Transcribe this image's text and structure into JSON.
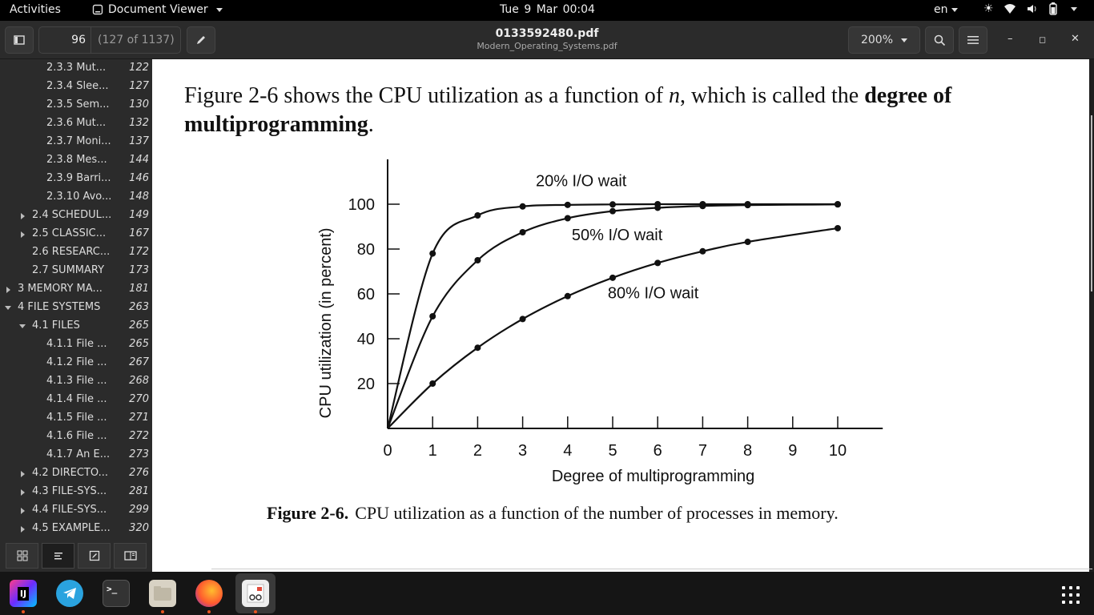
{
  "topbar": {
    "activities": "Activities",
    "app_name": "Document Viewer",
    "clock": "Tue 9 Mar  00:04",
    "lang": "en",
    "tray_icons": [
      "brightness-icon",
      "wifi-icon",
      "volume-icon",
      "battery-icon",
      "power-icon"
    ]
  },
  "header": {
    "page_number": "96",
    "page_of": "(127 of 1137)",
    "title": "0133592480.pdf",
    "subtitle": "Modern_Operating_Systems.pdf",
    "zoom": "200%"
  },
  "sidebar": {
    "items": [
      {
        "label": "2.3.3 Mut...",
        "page": "122",
        "indent": 2,
        "arrow": "none"
      },
      {
        "label": "2.3.4 Slee...",
        "page": "127",
        "indent": 2,
        "arrow": "none"
      },
      {
        "label": "2.3.5 Sem...",
        "page": "130",
        "indent": 2,
        "arrow": "none"
      },
      {
        "label": "2.3.6 Mut...",
        "page": "132",
        "indent": 2,
        "arrow": "none"
      },
      {
        "label": "2.3.7 Moni...",
        "page": "137",
        "indent": 2,
        "arrow": "none"
      },
      {
        "label": "2.3.8 Mes...",
        "page": "144",
        "indent": 2,
        "arrow": "none"
      },
      {
        "label": "2.3.9 Barri...",
        "page": "146",
        "indent": 2,
        "arrow": "none"
      },
      {
        "label": "2.3.10 Avo...",
        "page": "148",
        "indent": 2,
        "arrow": "none"
      },
      {
        "label": "2.4 SCHEDUL...",
        "page": "149",
        "indent": 1,
        "arrow": "right"
      },
      {
        "label": "2.5 CLASSIC...",
        "page": "167",
        "indent": 1,
        "arrow": "right"
      },
      {
        "label": "2.6 RESEARC...",
        "page": "172",
        "indent": 1,
        "arrow": "none"
      },
      {
        "label": "2.7 SUMMARY",
        "page": "173",
        "indent": 1,
        "arrow": "none"
      },
      {
        "label": "3 MEMORY MA...",
        "page": "181",
        "indent": 0,
        "arrow": "right"
      },
      {
        "label": "4 FILE SYSTEMS",
        "page": "263",
        "indent": 0,
        "arrow": "down"
      },
      {
        "label": "4.1 FILES",
        "page": "265",
        "indent": 1,
        "arrow": "down"
      },
      {
        "label": "4.1.1 File ...",
        "page": "265",
        "indent": 2,
        "arrow": "none"
      },
      {
        "label": "4.1.2 File ...",
        "page": "267",
        "indent": 2,
        "arrow": "none"
      },
      {
        "label": "4.1.3 File ...",
        "page": "268",
        "indent": 2,
        "arrow": "none"
      },
      {
        "label": "4.1.4 File ...",
        "page": "270",
        "indent": 2,
        "arrow": "none"
      },
      {
        "label": "4.1.5 File ...",
        "page": "271",
        "indent": 2,
        "arrow": "none"
      },
      {
        "label": "4.1.6 File ...",
        "page": "272",
        "indent": 2,
        "arrow": "none"
      },
      {
        "label": "4.1.7 An E...",
        "page": "273",
        "indent": 2,
        "arrow": "none"
      },
      {
        "label": "4.2 DIRECTO...",
        "page": "276",
        "indent": 1,
        "arrow": "right"
      },
      {
        "label": "4.3 FILE-SYS...",
        "page": "281",
        "indent": 1,
        "arrow": "right"
      },
      {
        "label": "4.4 FILE-SYS...",
        "page": "299",
        "indent": 1,
        "arrow": "right"
      },
      {
        "label": "4.5 EXAMPLE...",
        "page": "320",
        "indent": 1,
        "arrow": "right"
      }
    ]
  },
  "document": {
    "para_before": "Figure 2-6 shows the CPU utilization as a function of ",
    "para_n": "n",
    "para_middle": ", which is called the ",
    "para_bold": "degree of multiprogramming",
    "para_end": ".",
    "caption_label": "Figure 2-6.",
    "caption_text": "CPU utilization as a function of the number of processes in memory."
  },
  "chart_data": {
    "type": "line",
    "xlabel": "Degree of multiprogramming",
    "ylabel": "CPU utilization (in percent)",
    "xlim": [
      0,
      11
    ],
    "ylim": [
      0,
      120
    ],
    "xticks": [
      0,
      1,
      2,
      3,
      4,
      5,
      6,
      7,
      8,
      9,
      10
    ],
    "yticks": [
      20,
      40,
      60,
      80,
      100
    ],
    "series": [
      {
        "name": "20% I/O wait",
        "label_at": [
          4.3,
          108
        ],
        "x": [
          0,
          1,
          2,
          3,
          4,
          5,
          6,
          7,
          8,
          10
        ],
        "values": [
          0,
          78,
          95,
          99,
          99.7,
          99.9,
          100,
          100,
          100,
          100
        ]
      },
      {
        "name": "50% I/O wait",
        "label_at": [
          5.1,
          84
        ],
        "x": [
          0,
          1,
          2,
          3,
          4,
          5,
          6,
          7,
          8,
          10
        ],
        "values": [
          0,
          50,
          75,
          87.5,
          93.75,
          96.9,
          98.4,
          99.2,
          99.6,
          99.9
        ]
      },
      {
        "name": "80% I/O wait",
        "label_at": [
          5.9,
          58
        ],
        "x": [
          0,
          1,
          2,
          3,
          4,
          5,
          6,
          7,
          8,
          10
        ],
        "values": [
          0,
          20,
          36,
          48.8,
          59,
          67.2,
          73.8,
          79,
          83.2,
          89.3
        ]
      }
    ]
  },
  "colors": {
    "chart_ink": "#111111",
    "accent": "#e95420"
  }
}
